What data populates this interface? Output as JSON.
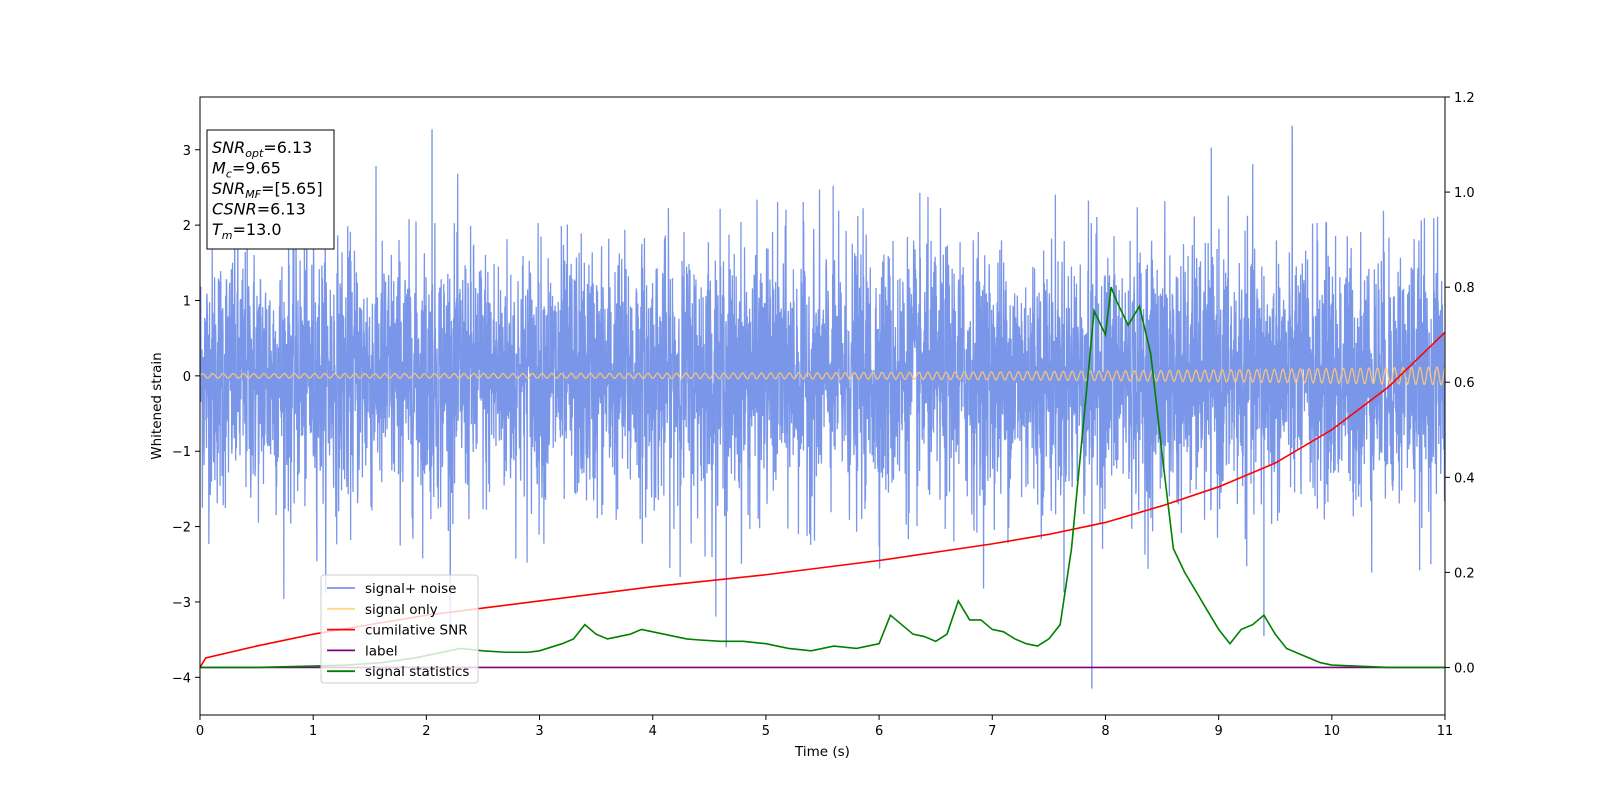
{
  "chart_data": {
    "type": "line",
    "title": "",
    "xlabel": "Time (s)",
    "ylabel": "Whitened strain",
    "xlim": [
      0,
      11
    ],
    "ylim_left": [
      -4.5,
      3.7
    ],
    "ylim_right": [
      -0.1,
      1.2
    ],
    "x_ticks": [
      "0",
      "1",
      "2",
      "3",
      "4",
      "5",
      "6",
      "7",
      "8",
      "9",
      "10",
      "11"
    ],
    "y_ticks_left": [
      "−4",
      "−3",
      "−2",
      "−1",
      "0",
      "1",
      "2",
      "3"
    ],
    "y_ticks_left_values": [
      -4,
      -3,
      -2,
      -1,
      0,
      1,
      2,
      3
    ],
    "y_ticks_right": [
      "0.0",
      "0.2",
      "0.4",
      "0.6",
      "0.8",
      "1.0",
      "1.2"
    ],
    "y_ticks_right_values": [
      0.0,
      0.2,
      0.4,
      0.6,
      0.8,
      1.0,
      1.2
    ],
    "grid": false,
    "legend_position": "lower-left",
    "legend": [
      {
        "label": "signal+ noise",
        "color": "#7a96e8"
      },
      {
        "label": "signal only",
        "color": "#ffd68a"
      },
      {
        "label": "cumilative SNR",
        "color": "#ff0000"
      },
      {
        "label": "label",
        "color": "#800080"
      },
      {
        "label": "signal statistics",
        "color": "#008000"
      }
    ],
    "info_box": [
      {
        "main": "SNR",
        "sub": "opt",
        "value": "=6.13"
      },
      {
        "main": "M",
        "sub": "c",
        "value": "=9.65"
      },
      {
        "main": "SNR",
        "sub": "MF",
        "value": "=[5.65]"
      },
      {
        "main": "CSNR",
        "sub": "",
        "value": "=6.13"
      },
      {
        "main": "T",
        "sub": "m",
        "value": "=13.0"
      }
    ],
    "series": [
      {
        "name": "signal+ noise",
        "axis": "left",
        "color": "#7a96e8",
        "description_values": {
          "mean": 0.0,
          "std": 0.85,
          "min": -4.2,
          "max": 3.32
        }
      },
      {
        "name": "signal only",
        "axis": "left",
        "color": "#ffc874",
        "amplitude_start": 0.03,
        "amplitude_end": 0.12
      },
      {
        "name": "cumilative SNR",
        "axis": "right",
        "color": "#ff0000",
        "x": [
          0,
          0.05,
          0.5,
          1,
          2,
          3,
          4,
          5,
          6,
          7,
          7.5,
          8,
          8.5,
          9,
          9.5,
          10,
          10.5,
          11
        ],
        "y": [
          0.0,
          0.02,
          0.045,
          0.07,
          0.11,
          0.14,
          0.17,
          0.195,
          0.225,
          0.26,
          0.28,
          0.305,
          0.34,
          0.38,
          0.43,
          0.5,
          0.59,
          0.705
        ]
      },
      {
        "name": "label",
        "axis": "right",
        "color": "#800080",
        "x": [
          0,
          11
        ],
        "y": [
          0.0,
          0.0
        ]
      },
      {
        "name": "signal statistics",
        "axis": "right",
        "color": "#008000",
        "x": [
          0,
          0.5,
          1,
          1.3,
          1.6,
          1.9,
          2.1,
          2.3,
          2.5,
          2.7,
          2.9,
          3.0,
          3.2,
          3.3,
          3.4,
          3.5,
          3.6,
          3.7,
          3.8,
          3.9,
          4.0,
          4.1,
          4.2,
          4.3,
          4.4,
          4.6,
          4.8,
          5.0,
          5.2,
          5.4,
          5.6,
          5.8,
          6.0,
          6.1,
          6.2,
          6.3,
          6.4,
          6.5,
          6.6,
          6.7,
          6.8,
          6.9,
          7.0,
          7.1,
          7.2,
          7.3,
          7.4,
          7.5,
          7.6,
          7.7,
          7.8,
          7.9,
          8.0,
          8.05,
          8.1,
          8.2,
          8.3,
          8.4,
          8.5,
          8.6,
          8.7,
          8.8,
          8.9,
          9.0,
          9.1,
          9.2,
          9.3,
          9.4,
          9.5,
          9.6,
          9.7,
          9.8,
          9.9,
          10.0,
          10.5,
          11.0
        ],
        "y": [
          0.0,
          0.0,
          0.003,
          0.005,
          0.01,
          0.02,
          0.03,
          0.04,
          0.035,
          0.032,
          0.032,
          0.035,
          0.05,
          0.06,
          0.09,
          0.07,
          0.06,
          0.065,
          0.07,
          0.08,
          0.075,
          0.07,
          0.065,
          0.06,
          0.058,
          0.055,
          0.055,
          0.05,
          0.04,
          0.035,
          0.045,
          0.04,
          0.05,
          0.11,
          0.09,
          0.07,
          0.065,
          0.055,
          0.07,
          0.14,
          0.1,
          0.1,
          0.08,
          0.075,
          0.06,
          0.05,
          0.045,
          0.06,
          0.09,
          0.25,
          0.5,
          0.75,
          0.7,
          0.8,
          0.77,
          0.72,
          0.76,
          0.66,
          0.45,
          0.25,
          0.2,
          0.16,
          0.12,
          0.08,
          0.05,
          0.08,
          0.09,
          0.11,
          0.07,
          0.04,
          0.03,
          0.02,
          0.01,
          0.005,
          0.0,
          0.0
        ]
      }
    ]
  }
}
